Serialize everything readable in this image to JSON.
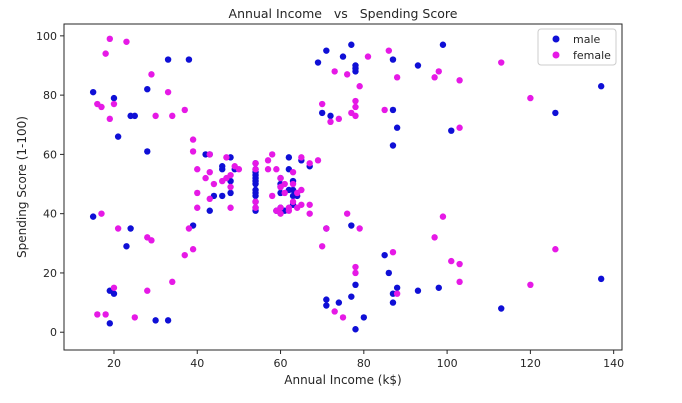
{
  "chart_data": {
    "type": "scatter",
    "title": "Annual Income   vs   Spending Score",
    "xlabel": "Annual Income (k$)",
    "ylabel": "Spending Score (1-100)",
    "xlim": [
      8,
      142
    ],
    "ylim": [
      -6,
      104
    ],
    "xticks": [
      20,
      40,
      60,
      80,
      100,
      120,
      140
    ],
    "yticks": [
      0,
      20,
      40,
      60,
      80,
      100
    ],
    "grid": false,
    "legend_position": "top-right",
    "series": [
      {
        "name": "male",
        "color": "#0f0fd6",
        "points": [
          [
            15,
            39
          ],
          [
            15,
            81
          ],
          [
            19,
            3
          ],
          [
            19,
            14
          ],
          [
            20,
            13
          ],
          [
            20,
            79
          ],
          [
            21,
            66
          ],
          [
            23,
            29
          ],
          [
            24,
            35
          ],
          [
            24,
            73
          ],
          [
            25,
            73
          ],
          [
            28,
            82
          ],
          [
            28,
            61
          ],
          [
            30,
            4
          ],
          [
            33,
            4
          ],
          [
            33,
            92
          ],
          [
            38,
            92
          ],
          [
            39,
            36
          ],
          [
            42,
            60
          ],
          [
            43,
            60
          ],
          [
            43,
            41
          ],
          [
            44,
            46
          ],
          [
            46,
            46
          ],
          [
            46,
            55
          ],
          [
            46,
            56
          ],
          [
            48,
            59
          ],
          [
            48,
            51
          ],
          [
            48,
            47
          ],
          [
            49,
            55
          ],
          [
            54,
            41
          ],
          [
            54,
            42
          ],
          [
            54,
            44
          ],
          [
            54,
            46
          ],
          [
            54,
            47
          ],
          [
            54,
            48
          ],
          [
            54,
            50
          ],
          [
            54,
            51
          ],
          [
            54,
            52
          ],
          [
            54,
            53
          ],
          [
            54,
            54
          ],
          [
            54,
            55
          ],
          [
            54,
            57
          ],
          [
            59,
            41
          ],
          [
            60,
            47
          ],
          [
            60,
            49
          ],
          [
            60,
            50
          ],
          [
            60,
            52
          ],
          [
            60,
            42
          ],
          [
            61,
            41
          ],
          [
            62,
            59
          ],
          [
            62,
            55
          ],
          [
            62,
            48
          ],
          [
            63,
            46
          ],
          [
            63,
            43
          ],
          [
            63,
            48
          ],
          [
            63,
            51
          ],
          [
            64,
            46
          ],
          [
            65,
            58
          ],
          [
            67,
            56
          ],
          [
            69,
            91
          ],
          [
            70,
            74
          ],
          [
            71,
            95
          ],
          [
            71,
            35
          ],
          [
            71,
            11
          ],
          [
            71,
            9
          ],
          [
            72,
            73
          ],
          [
            74,
            10
          ],
          [
            75,
            93
          ],
          [
            77,
            97
          ],
          [
            77,
            12
          ],
          [
            77,
            36
          ],
          [
            78,
            1
          ],
          [
            78,
            16
          ],
          [
            78,
            88
          ],
          [
            78,
            89
          ],
          [
            78,
            90
          ],
          [
            80,
            5
          ],
          [
            85,
            26
          ],
          [
            86,
            20
          ],
          [
            87,
            92
          ],
          [
            87,
            75
          ],
          [
            87,
            63
          ],
          [
            87,
            13
          ],
          [
            87,
            10
          ],
          [
            88,
            69
          ],
          [
            88,
            15
          ],
          [
            93,
            90
          ],
          [
            93,
            14
          ],
          [
            98,
            15
          ],
          [
            99,
            97
          ],
          [
            101,
            68
          ],
          [
            113,
            8
          ],
          [
            126,
            74
          ],
          [
            137,
            83
          ],
          [
            137,
            18
          ]
        ]
      },
      {
        "name": "female",
        "color": "#e619e6",
        "points": [
          [
            16,
            77
          ],
          [
            16,
            6
          ],
          [
            17,
            40
          ],
          [
            17,
            76
          ],
          [
            18,
            94
          ],
          [
            18,
            6
          ],
          [
            19,
            99
          ],
          [
            19,
            72
          ],
          [
            20,
            77
          ],
          [
            20,
            15
          ],
          [
            21,
            35
          ],
          [
            23,
            98
          ],
          [
            25,
            5
          ],
          [
            28,
            14
          ],
          [
            28,
            32
          ],
          [
            29,
            31
          ],
          [
            29,
            87
          ],
          [
            30,
            73
          ],
          [
            33,
            81
          ],
          [
            34,
            73
          ],
          [
            34,
            17
          ],
          [
            37,
            26
          ],
          [
            37,
            75
          ],
          [
            38,
            35
          ],
          [
            39,
            61
          ],
          [
            39,
            28
          ],
          [
            39,
            65
          ],
          [
            40,
            47
          ],
          [
            40,
            55
          ],
          [
            40,
            42
          ],
          [
            42,
            52
          ],
          [
            43,
            60
          ],
          [
            43,
            54
          ],
          [
            43,
            45
          ],
          [
            44,
            50
          ],
          [
            46,
            51
          ],
          [
            47,
            59
          ],
          [
            47,
            52
          ],
          [
            48,
            49
          ],
          [
            48,
            53
          ],
          [
            48,
            42
          ],
          [
            49,
            56
          ],
          [
            50,
            55
          ],
          [
            54,
            42
          ],
          [
            54,
            44
          ],
          [
            54,
            57
          ],
          [
            54,
            55
          ],
          [
            57,
            58
          ],
          [
            57,
            55
          ],
          [
            58,
            60
          ],
          [
            58,
            46
          ],
          [
            59,
            55
          ],
          [
            59,
            41
          ],
          [
            60,
            49
          ],
          [
            60,
            40
          ],
          [
            60,
            42
          ],
          [
            60,
            52
          ],
          [
            61,
            47
          ],
          [
            61,
            50
          ],
          [
            62,
            42
          ],
          [
            62,
            41
          ],
          [
            63,
            54
          ],
          [
            63,
            44
          ],
          [
            63,
            50
          ],
          [
            64,
            47
          ],
          [
            64,
            42
          ],
          [
            65,
            59
          ],
          [
            65,
            43
          ],
          [
            65,
            48
          ],
          [
            67,
            57
          ],
          [
            67,
            43
          ],
          [
            67,
            40
          ],
          [
            69,
            58
          ],
          [
            70,
            77
          ],
          [
            70,
            29
          ],
          [
            71,
            35
          ],
          [
            72,
            71
          ],
          [
            73,
            88
          ],
          [
            73,
            7
          ],
          [
            74,
            72
          ],
          [
            75,
            5
          ],
          [
            76,
            40
          ],
          [
            76,
            87
          ],
          [
            77,
            74
          ],
          [
            78,
            73
          ],
          [
            78,
            76
          ],
          [
            78,
            78
          ],
          [
            78,
            20
          ],
          [
            78,
            22
          ],
          [
            79,
            35
          ],
          [
            79,
            83
          ],
          [
            81,
            93
          ],
          [
            85,
            75
          ],
          [
            86,
            95
          ],
          [
            87,
            27
          ],
          [
            88,
            86
          ],
          [
            88,
            13
          ],
          [
            97,
            32
          ],
          [
            97,
            86
          ],
          [
            98,
            88
          ],
          [
            99,
            39
          ],
          [
            101,
            24
          ],
          [
            103,
            85
          ],
          [
            103,
            69
          ],
          [
            103,
            23
          ],
          [
            103,
            17
          ],
          [
            113,
            91
          ],
          [
            120,
            79
          ],
          [
            120,
            16
          ],
          [
            126,
            28
          ]
        ]
      }
    ]
  }
}
